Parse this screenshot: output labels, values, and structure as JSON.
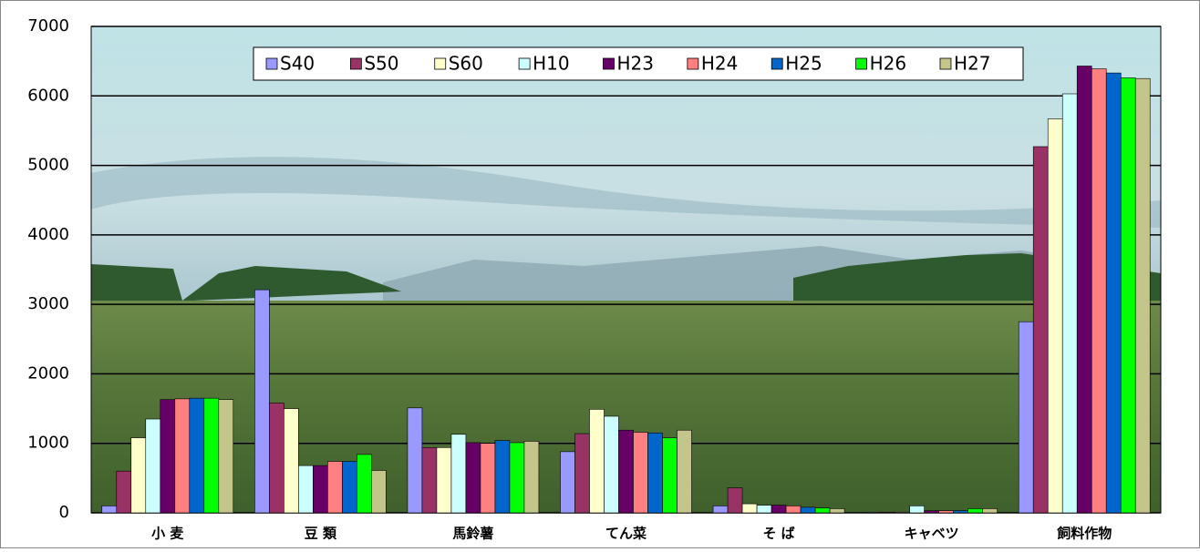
{
  "chart_data": {
    "type": "bar",
    "categories": [
      "小 麦",
      "豆 類",
      "馬鈴薯",
      "てん菜",
      "そ ば",
      "キャベツ",
      "飼料作物"
    ],
    "series": [
      {
        "name": "S40",
        "color": "#9999ff",
        "values": [
          100,
          3210,
          1510,
          880,
          100,
          10,
          2750
        ]
      },
      {
        "name": "S50",
        "color": "#993366",
        "values": [
          600,
          1580,
          940,
          1140,
          360,
          10,
          5270
        ]
      },
      {
        "name": "S60",
        "color": "#ffffcc",
        "values": [
          1080,
          1500,
          940,
          1490,
          130,
          10,
          5670
        ]
      },
      {
        "name": "H10",
        "color": "#ccffff",
        "values": [
          1350,
          680,
          1130,
          1390,
          110,
          100,
          6030
        ]
      },
      {
        "name": "H23",
        "color": "#660066",
        "values": [
          1630,
          680,
          1010,
          1190,
          110,
          30,
          6430
        ]
      },
      {
        "name": "H24",
        "color": "#ff8080",
        "values": [
          1640,
          740,
          1000,
          1160,
          100,
          30,
          6390
        ]
      },
      {
        "name": "H25",
        "color": "#0066cc",
        "values": [
          1650,
          740,
          1040,
          1150,
          80,
          30,
          6330
        ]
      },
      {
        "name": "H26",
        "color": "#00ff00",
        "values": [
          1650,
          840,
          1010,
          1080,
          70,
          60,
          6260
        ]
      },
      {
        "name": "H27",
        "color": "#c3c58a",
        "values": [
          1630,
          610,
          1030,
          1190,
          60,
          60,
          6250
        ]
      }
    ],
    "ylim": [
      0,
      7000
    ],
    "yticks": [
      0,
      1000,
      2000,
      3000,
      4000,
      5000,
      6000,
      7000
    ],
    "grid": true,
    "legend": "top"
  }
}
